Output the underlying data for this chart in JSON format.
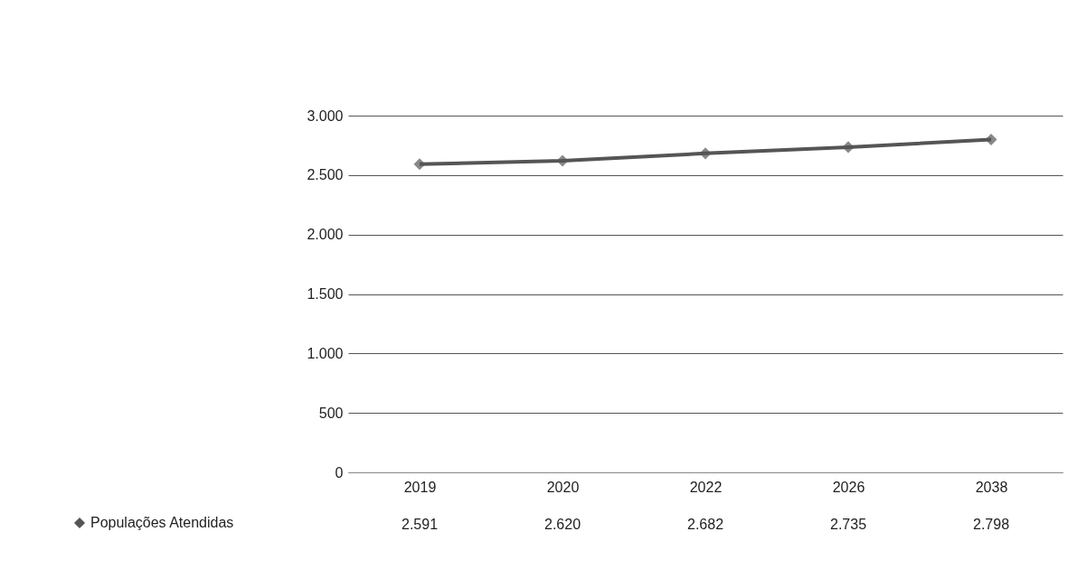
{
  "chart_data": {
    "type": "line",
    "categories": [
      "2019",
      "2020",
      "2022",
      "2026",
      "2038"
    ],
    "series": [
      {
        "name": "Populações Atendidas",
        "color": "#555555",
        "values": [
          2591,
          2620,
          2682,
          2735,
          2798
        ],
        "value_labels": [
          "2.591",
          "2.620",
          "2.682",
          "2.735",
          "2.798"
        ]
      }
    ],
    "ylim": [
      0,
      3000
    ],
    "yticks": [
      {
        "value": 0,
        "label": "0"
      },
      {
        "value": 500,
        "label": "500"
      },
      {
        "value": 1000,
        "label": "1.000"
      },
      {
        "value": 1500,
        "label": "1.500"
      },
      {
        "value": 2000,
        "label": "2.000"
      },
      {
        "value": 2500,
        "label": "2.500"
      },
      {
        "value": 3000,
        "label": "3.000"
      }
    ],
    "grid": "y",
    "legend": "bottom left",
    "marker": "diamond",
    "line_style": "solid"
  }
}
